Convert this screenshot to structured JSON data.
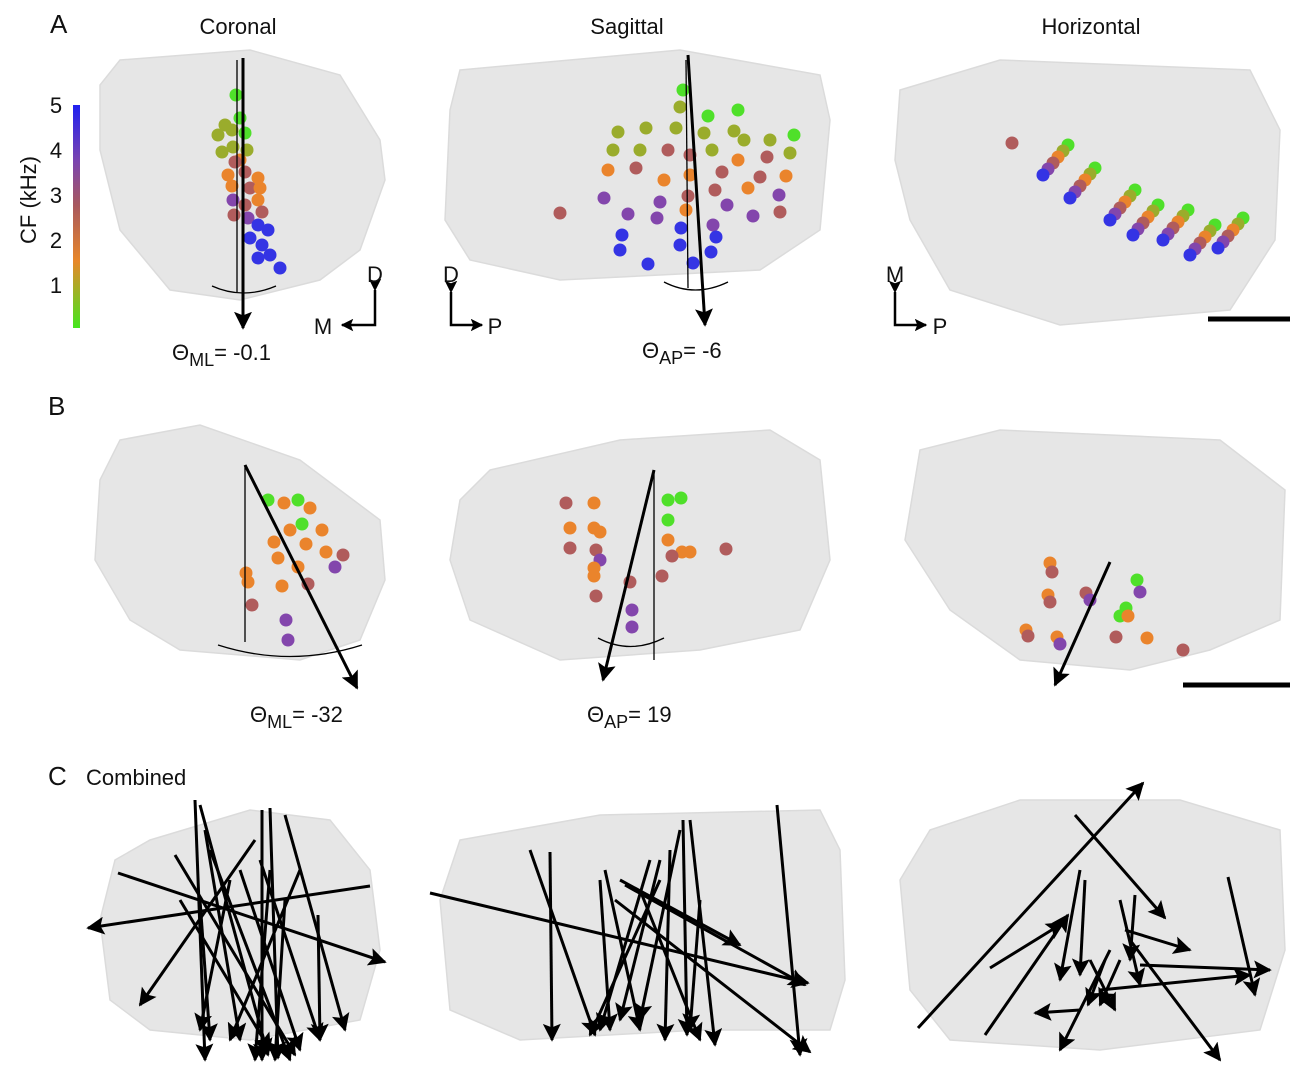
{
  "panels": [
    {
      "label": "A",
      "views": [
        {
          "title": "Coronal",
          "angle": {
            "symbol": "Θ",
            "subscript": "ML",
            "suffix": "= -0.1"
          }
        },
        {
          "title": "Sagittal",
          "angle": {
            "symbol": "Θ",
            "subscript": "AP",
            "suffix": "= -6"
          }
        },
        {
          "title": "Horizontal"
        }
      ]
    },
    {
      "label": "B",
      "views": [
        {
          "angle": {
            "symbol": "Θ",
            "subscript": "ML",
            "suffix": "= -32"
          }
        },
        {
          "angle": {
            "symbol": "Θ",
            "subscript": "AP",
            "suffix": "= 19"
          }
        }
      ]
    },
    {
      "label": "C",
      "title": "Combined"
    }
  ],
  "colorbar": {
    "label": "CF (kHz)",
    "ticks": [
      1,
      2,
      3,
      4,
      5
    ]
  },
  "orientation": {
    "coronal": [
      "D",
      "M"
    ],
    "sagittal": [
      "D",
      "P"
    ],
    "horizontal": [
      "M",
      "P"
    ]
  }
}
